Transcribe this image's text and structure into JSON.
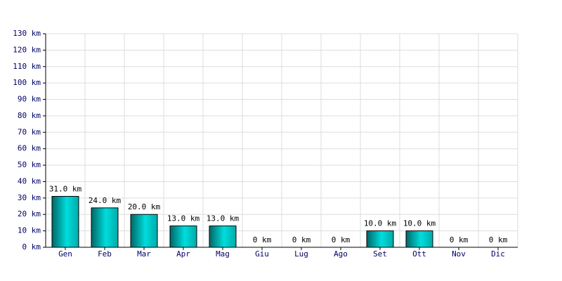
{
  "chart_data": {
    "type": "bar",
    "categories": [
      "Gen",
      "Feb",
      "Mar",
      "Apr",
      "Mag",
      "Giu",
      "Lug",
      "Ago",
      "Set",
      "Ott",
      "Nov",
      "Dic"
    ],
    "values": [
      31,
      24,
      20,
      13,
      13,
      0,
      0,
      0,
      10,
      10,
      0,
      0
    ],
    "value_labels": [
      "31.0 km",
      "24.0 km",
      "20.0 km",
      "13.0 km",
      "13.0 km",
      "0 km",
      "0 km",
      "0 km",
      "10.0 km",
      "10.0 km",
      "0 km",
      "0 km"
    ],
    "color": "#00dddd",
    "ylim": [
      0,
      130
    ],
    "yticks": [
      {
        "value": 0,
        "label": "0 km"
      },
      {
        "value": 10,
        "label": "10 km"
      },
      {
        "value": 20,
        "label": "20 km"
      },
      {
        "value": 30,
        "label": "30 km"
      },
      {
        "value": 40,
        "label": "40 km"
      },
      {
        "value": 50,
        "label": "50 km"
      },
      {
        "value": 60,
        "label": "60 km"
      },
      {
        "value": 70,
        "label": "70 km"
      },
      {
        "value": 80,
        "label": "80 km"
      },
      {
        "value": 90,
        "label": "90 km"
      },
      {
        "value": 100,
        "label": "100 km"
      },
      {
        "value": 110,
        "label": "110 km"
      },
      {
        "value": 120,
        "label": "120 km"
      },
      {
        "value": 130,
        "label": "130 km"
      }
    ],
    "grid": true
  }
}
